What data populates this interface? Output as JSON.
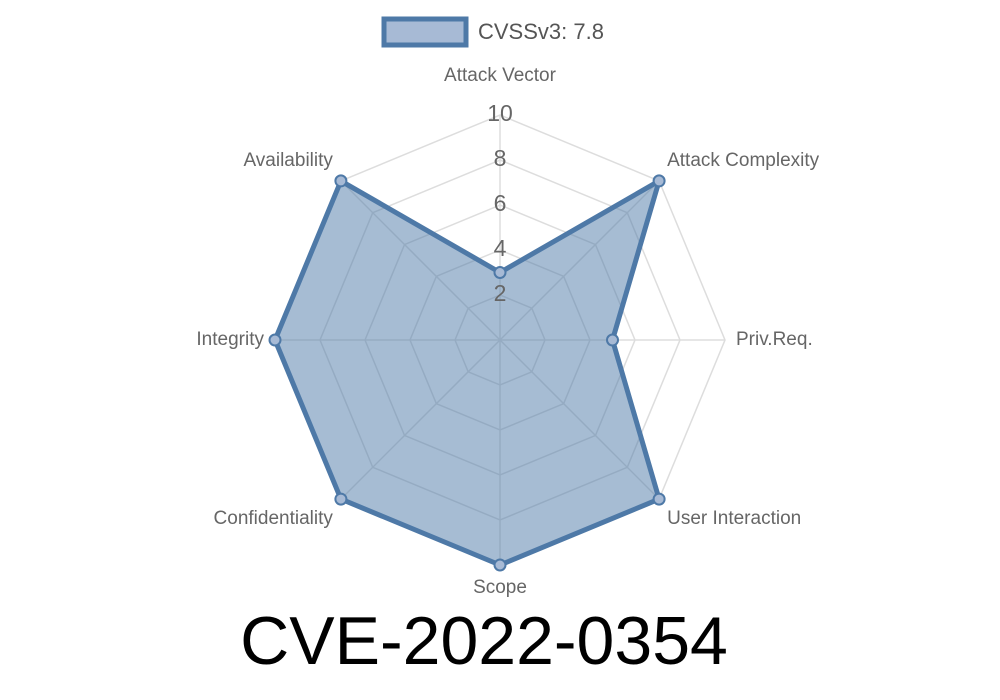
{
  "chart_data": {
    "type": "radar",
    "title": "CVE-2022-0354",
    "categories": [
      "Attack Vector",
      "Attack Complexity",
      "Priv.Req.",
      "User Interaction",
      "Scope",
      "Confidentiality",
      "Integrity",
      "Availability"
    ],
    "series": [
      {
        "name": "CVSSv3: 7.8",
        "color": "#4e79a7",
        "values": [
          3,
          10,
          5,
          10,
          10,
          10,
          10,
          10
        ]
      }
    ],
    "rlim": [
      0,
      10
    ],
    "rticks": [
      2,
      4,
      6,
      8,
      10
    ],
    "grid": true
  }
}
